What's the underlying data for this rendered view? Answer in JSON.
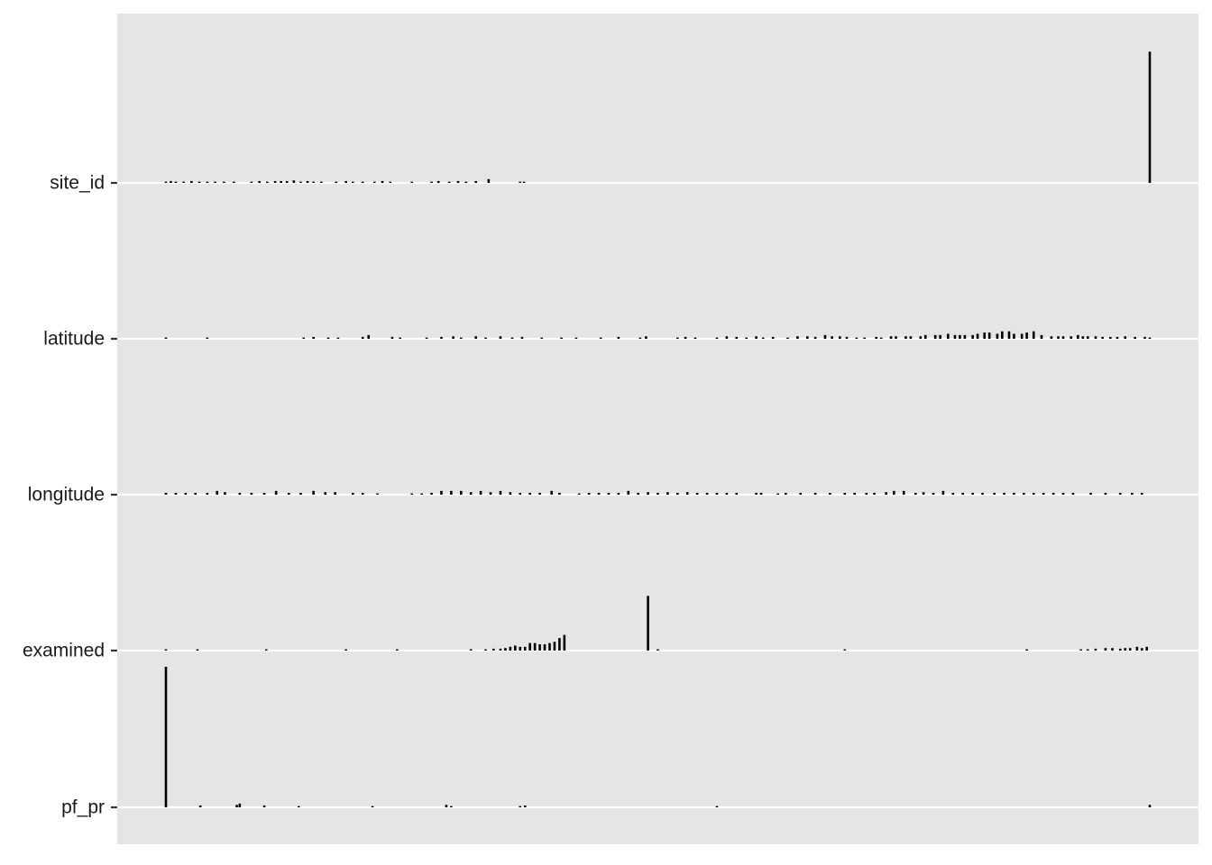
{
  "chart_data": {
    "type": "bar",
    "title": "",
    "xlabel": "",
    "ylabel": "",
    "grid": "horizontal baselines only",
    "legend": "none",
    "colors": {
      "panel": "#e5e5e5",
      "gridline": "#ffffff",
      "bar": "#000000",
      "tick_label": "#1a1a1a",
      "tick": "#333333"
    },
    "x_range": [
      0,
      1
    ],
    "height_unit": "fraction of row spacing",
    "series": [
      {
        "name": "site_id",
        "x": [
          0.0,
          0.005,
          0.01,
          0.018,
          0.026,
          0.034,
          0.042,
          0.05,
          0.059,
          0.069,
          0.087,
          0.095,
          0.103,
          0.111,
          0.117,
          0.123,
          0.13,
          0.137,
          0.144,
          0.15,
          0.158,
          0.173,
          0.183,
          0.19,
          0.2,
          0.212,
          0.22,
          0.228,
          0.25,
          0.27,
          0.277,
          0.288,
          0.297,
          0.305,
          0.315,
          0.328,
          0.36,
          0.364,
          1.0
        ],
        "values": [
          0.008,
          0.012,
          0.008,
          0.008,
          0.012,
          0.008,
          0.008,
          0.008,
          0.008,
          0.008,
          0.008,
          0.012,
          0.008,
          0.012,
          0.012,
          0.012,
          0.016,
          0.008,
          0.012,
          0.008,
          0.008,
          0.008,
          0.012,
          0.008,
          0.008,
          0.008,
          0.012,
          0.008,
          0.008,
          0.008,
          0.012,
          0.008,
          0.012,
          0.008,
          0.012,
          0.024,
          0.008,
          0.008,
          0.84
        ]
      },
      {
        "name": "latitude",
        "x": [
          0.0,
          0.042,
          0.14,
          0.15,
          0.165,
          0.175,
          0.2,
          0.206,
          0.23,
          0.238,
          0.265,
          0.28,
          0.292,
          0.3,
          0.315,
          0.325,
          0.34,
          0.352,
          0.362,
          0.382,
          0.402,
          0.417,
          0.442,
          0.46,
          0.482,
          0.488,
          0.52,
          0.528,
          0.538,
          0.56,
          0.57,
          0.58,
          0.59,
          0.6,
          0.607,
          0.617,
          0.632,
          0.642,
          0.652,
          0.66,
          0.67,
          0.677,
          0.685,
          0.692,
          0.702,
          0.71,
          0.722,
          0.727,
          0.737,
          0.742,
          0.752,
          0.757,
          0.767,
          0.772,
          0.782,
          0.787,
          0.795,
          0.802,
          0.807,
          0.812,
          0.82,
          0.825,
          0.832,
          0.837,
          0.845,
          0.85,
          0.857,
          0.862,
          0.87,
          0.875,
          0.882,
          0.89,
          0.9,
          0.907,
          0.912,
          0.92,
          0.927,
          0.932,
          0.937,
          0.945,
          0.952,
          0.96,
          0.967,
          0.975,
          0.985,
          0.995,
          1.0
        ],
        "values": [
          0.008,
          0.008,
          0.008,
          0.012,
          0.008,
          0.008,
          0.012,
          0.024,
          0.012,
          0.008,
          0.008,
          0.012,
          0.016,
          0.008,
          0.016,
          0.008,
          0.016,
          0.008,
          0.012,
          0.008,
          0.008,
          0.008,
          0.008,
          0.012,
          0.008,
          0.016,
          0.008,
          0.012,
          0.008,
          0.008,
          0.016,
          0.012,
          0.008,
          0.016,
          0.008,
          0.012,
          0.008,
          0.016,
          0.016,
          0.012,
          0.024,
          0.016,
          0.016,
          0.012,
          0.008,
          0.008,
          0.012,
          0.008,
          0.016,
          0.016,
          0.016,
          0.016,
          0.016,
          0.024,
          0.024,
          0.024,
          0.032,
          0.024,
          0.024,
          0.024,
          0.024,
          0.032,
          0.04,
          0.04,
          0.032,
          0.048,
          0.048,
          0.032,
          0.032,
          0.04,
          0.048,
          0.024,
          0.016,
          0.016,
          0.016,
          0.016,
          0.024,
          0.016,
          0.016,
          0.016,
          0.012,
          0.012,
          0.012,
          0.016,
          0.012,
          0.012,
          0.008
        ]
      },
      {
        "name": "longitude",
        "x": [
          0.0,
          0.01,
          0.02,
          0.03,
          0.042,
          0.052,
          0.06,
          0.075,
          0.087,
          0.1,
          0.112,
          0.125,
          0.137,
          0.15,
          0.162,
          0.172,
          0.19,
          0.2,
          0.215,
          0.25,
          0.26,
          0.27,
          0.28,
          0.29,
          0.3,
          0.31,
          0.32,
          0.33,
          0.34,
          0.35,
          0.36,
          0.37,
          0.38,
          0.392,
          0.4,
          0.42,
          0.43,
          0.44,
          0.45,
          0.46,
          0.47,
          0.48,
          0.49,
          0.5,
          0.51,
          0.52,
          0.53,
          0.54,
          0.55,
          0.56,
          0.57,
          0.58,
          0.6,
          0.605,
          0.622,
          0.63,
          0.645,
          0.66,
          0.675,
          0.69,
          0.7,
          0.712,
          0.72,
          0.732,
          0.74,
          0.75,
          0.762,
          0.77,
          0.78,
          0.79,
          0.8,
          0.81,
          0.82,
          0.83,
          0.842,
          0.852,
          0.862,
          0.872,
          0.882,
          0.892,
          0.902,
          0.912,
          0.922,
          0.94,
          0.955,
          0.97,
          0.982,
          0.992
        ],
        "values": [
          0.012,
          0.012,
          0.012,
          0.012,
          0.012,
          0.024,
          0.016,
          0.012,
          0.012,
          0.012,
          0.024,
          0.012,
          0.012,
          0.024,
          0.016,
          0.016,
          0.012,
          0.012,
          0.008,
          0.008,
          0.008,
          0.012,
          0.024,
          0.024,
          0.024,
          0.016,
          0.024,
          0.016,
          0.024,
          0.016,
          0.012,
          0.012,
          0.012,
          0.024,
          0.012,
          0.008,
          0.012,
          0.012,
          0.012,
          0.012,
          0.024,
          0.012,
          0.016,
          0.012,
          0.016,
          0.012,
          0.016,
          0.012,
          0.012,
          0.012,
          0.012,
          0.012,
          0.012,
          0.012,
          0.008,
          0.012,
          0.012,
          0.012,
          0.012,
          0.012,
          0.012,
          0.012,
          0.012,
          0.016,
          0.024,
          0.024,
          0.012,
          0.016,
          0.012,
          0.024,
          0.012,
          0.012,
          0.012,
          0.012,
          0.012,
          0.012,
          0.012,
          0.012,
          0.012,
          0.012,
          0.012,
          0.012,
          0.012,
          0.012,
          0.012,
          0.012,
          0.012,
          0.012
        ]
      },
      {
        "name": "examined",
        "x": [
          0.0,
          0.032,
          0.102,
          0.183,
          0.235,
          0.31,
          0.31,
          0.325,
          0.333,
          0.34,
          0.345,
          0.35,
          0.355,
          0.36,
          0.365,
          0.37,
          0.375,
          0.38,
          0.385,
          0.39,
          0.395,
          0.4,
          0.405,
          0.49,
          0.5,
          0.69,
          0.875,
          0.93,
          0.937,
          0.945,
          0.955,
          0.962,
          0.97,
          0.975,
          0.98,
          0.987,
          0.992,
          0.997
        ],
        "values": [
          0.008,
          0.008,
          0.008,
          0.008,
          0.008,
          0.008,
          0.008,
          0.008,
          0.012,
          0.012,
          0.016,
          0.024,
          0.032,
          0.024,
          0.024,
          0.048,
          0.048,
          0.04,
          0.04,
          0.048,
          0.056,
          0.08,
          0.1,
          0.35,
          0.008,
          0.008,
          0.008,
          0.008,
          0.008,
          0.012,
          0.016,
          0.016,
          0.012,
          0.016,
          0.016,
          0.024,
          0.016,
          0.024
        ]
      },
      {
        "name": "pf_pr",
        "x": [
          0.0,
          0.035,
          0.072,
          0.075,
          0.1,
          0.135,
          0.21,
          0.285,
          0.29,
          0.36,
          0.365,
          0.56,
          1.0
        ],
        "values": [
          0.9,
          0.012,
          0.016,
          0.024,
          0.012,
          0.008,
          0.008,
          0.016,
          0.008,
          0.008,
          0.012,
          0.008,
          0.016
        ]
      }
    ]
  }
}
